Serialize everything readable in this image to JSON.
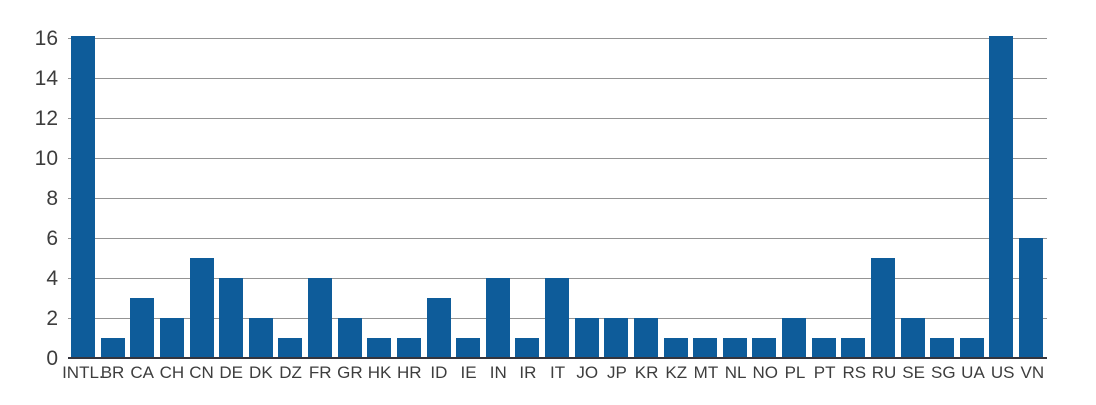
{
  "chart_data": {
    "type": "bar",
    "title": "",
    "xlabel": "",
    "ylabel": "",
    "categories": [
      "INTL.",
      "BR",
      "CA",
      "CH",
      "CN",
      "DE",
      "DK",
      "DZ",
      "FR",
      "GR",
      "HK",
      "HR",
      "ID",
      "IE",
      "IN",
      "IR",
      "IT",
      "JO",
      "JP",
      "KR",
      "KZ",
      "MT",
      "NL",
      "NO",
      "PL",
      "PT",
      "RS",
      "RU",
      "SE",
      "SG",
      "UA",
      "US",
      "VN"
    ],
    "values": [
      16.1,
      1,
      3,
      2,
      5,
      4,
      2,
      1,
      4,
      2,
      1,
      1,
      3,
      1,
      4,
      1,
      4,
      2,
      2,
      2,
      1,
      1,
      1,
      1,
      2,
      1,
      1,
      5,
      2,
      1,
      1,
      16.1,
      6
    ],
    "yticks": [
      0,
      2,
      4,
      6,
      8,
      10,
      12,
      14,
      16
    ],
    "ylim": [
      0,
      16.1
    ],
    "grid": "horizontal",
    "legend": "none",
    "note": "INTL. and US bars extend slightly above the 16 gridline and are clipped at the top of the plot area",
    "colors": {
      "bar": "#0E5C9A",
      "gridline": "#949494",
      "baseline": "#35353D",
      "tick_text": "#3D3D3D",
      "background": "#FFFFFF"
    }
  }
}
